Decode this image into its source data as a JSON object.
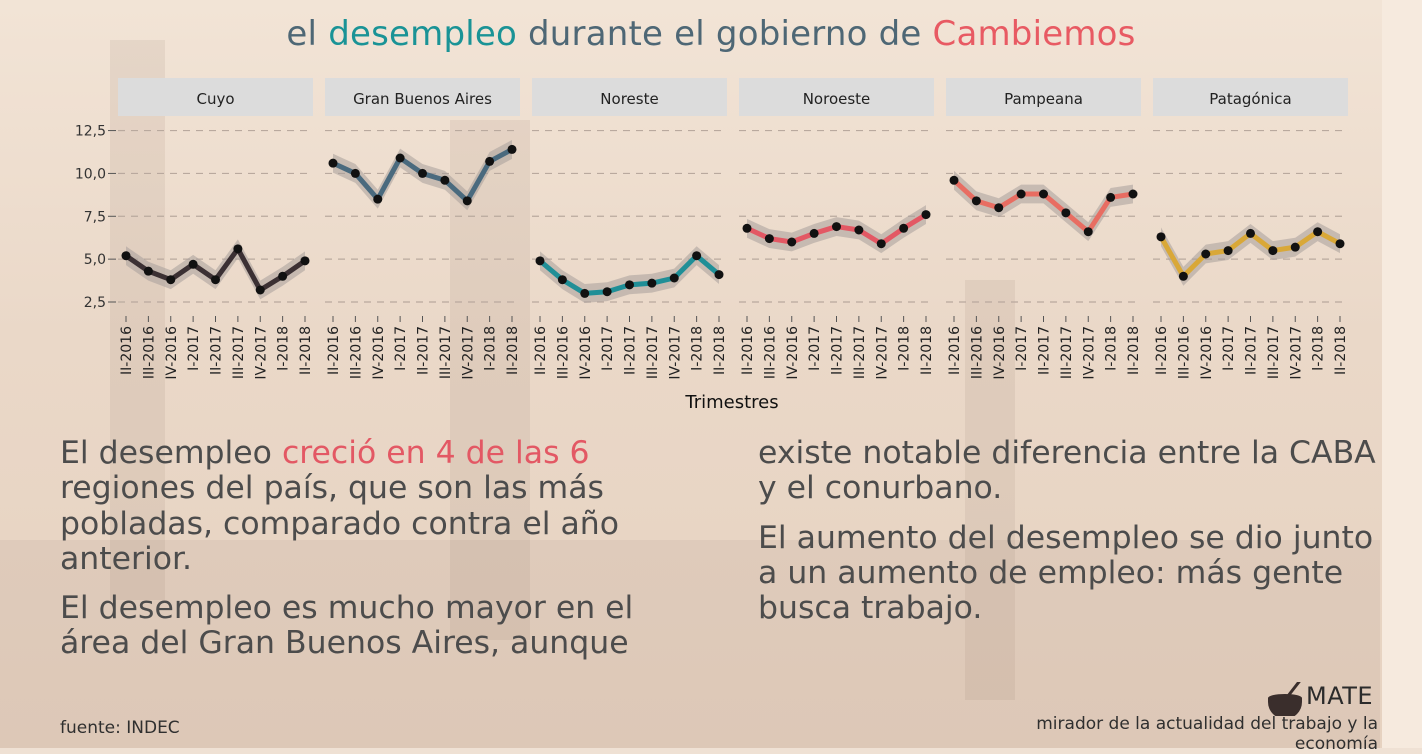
{
  "title": {
    "part1": "el ",
    "part2": "desempleo",
    "part3": " durante el gobierno de ",
    "part4": "Cambiemos"
  },
  "colors": {
    "title": "#4e6775",
    "accent_teal": "#1a9396",
    "accent_red": "#e85a63",
    "strip_bg": "#dcdcdc",
    "band": "#a89f9a"
  },
  "chart_data": {
    "type": "line",
    "xlabel": "Trimestres",
    "ylabel": "",
    "ylim": [
      1.8,
      13.0
    ],
    "yticks": [
      "12,5",
      "10,0",
      "7,5",
      "5,0",
      "2,5"
    ],
    "ytick_values": [
      12.5,
      10.0,
      7.5,
      5.0,
      2.5
    ],
    "grid": true,
    "categories": [
      "II-2016",
      "III-2016",
      "IV-2016",
      "I-2017",
      "II-2017",
      "III-2017",
      "IV-2017",
      "I-2018",
      "II-2018"
    ],
    "panels": [
      {
        "name": "Cuyo",
        "color": "#3b3033",
        "values": [
          5.2,
          4.3,
          3.8,
          4.7,
          3.8,
          5.6,
          3.2,
          4.0,
          4.9
        ]
      },
      {
        "name": "Gran Buenos Aires",
        "color": "#4a6a7e",
        "values": [
          10.6,
          10.0,
          8.5,
          10.9,
          10.0,
          9.6,
          8.4,
          10.7,
          11.4
        ]
      },
      {
        "name": "Noreste",
        "color": "#208f97",
        "values": [
          4.9,
          3.8,
          3.0,
          3.1,
          3.5,
          3.6,
          3.9,
          5.2,
          4.1
        ]
      },
      {
        "name": "Noroeste",
        "color": "#e35864",
        "values": [
          6.8,
          6.2,
          6.0,
          6.5,
          6.9,
          6.7,
          5.9,
          6.8,
          7.6
        ]
      },
      {
        "name": "Pampeana",
        "color": "#e86d62",
        "values": [
          9.6,
          8.4,
          8.0,
          8.8,
          8.8,
          7.7,
          6.6,
          8.6,
          8.8
        ]
      },
      {
        "name": "Patagónica",
        "color": "#d9a838",
        "values": [
          6.3,
          4.0,
          5.3,
          5.5,
          6.5,
          5.5,
          5.7,
          6.6,
          5.9
        ]
      }
    ]
  },
  "text": {
    "left_p1_a": "El desempleo ",
    "left_p1_hl": "creció en 4 de las 6",
    "left_p1_b": " regiones del país, que son las más pobladas, comparado contra el año anterior.",
    "left_p2": "El desempleo es mucho mayor en el área del Gran Buenos Aires, aunque",
    "right_p1": "existe notable diferencia entre la CABA y el conurbano.",
    "right_p2": "El aumento del desempleo se dio junto a un aumento de empleo: más gente busca trabajo."
  },
  "footer": {
    "source": "fuente: INDEC",
    "logo": "MATE",
    "tagline": "mirador de la actualidad del trabajo y la economía"
  }
}
